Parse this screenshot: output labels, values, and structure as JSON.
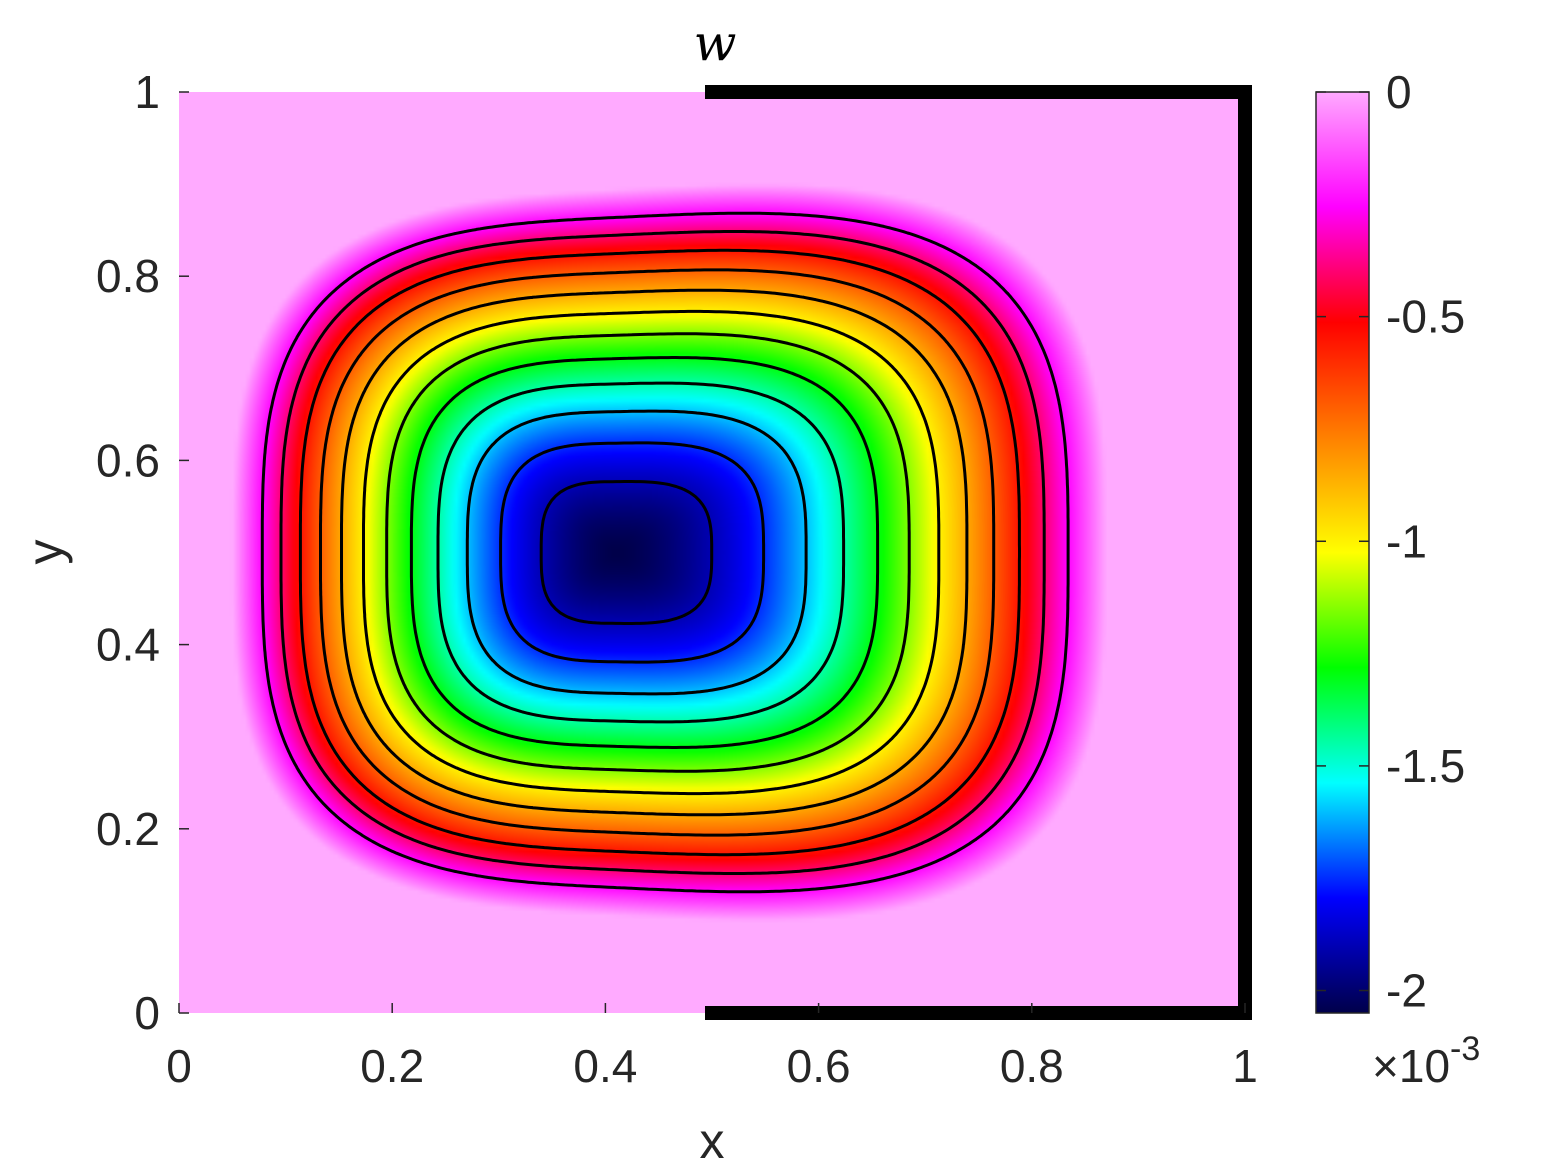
{
  "chart_data": {
    "type": "heatmap",
    "title": "w",
    "xlabel": "x",
    "ylabel": "y",
    "xlim": [
      0,
      1
    ],
    "ylim": [
      0,
      1
    ],
    "x_ticks": [
      "0",
      "0.2",
      "0.4",
      "0.6",
      "0.8",
      "1"
    ],
    "y_ticks": [
      "0",
      "0.2",
      "0.4",
      "0.6",
      "0.8",
      "1"
    ],
    "colorbar": {
      "range": [
        -2.05,
        0
      ],
      "ticks": [
        "0",
        "-0.5",
        "-1",
        "-1.5",
        "-2"
      ],
      "tick_values": [
        0,
        -0.5,
        -1,
        -1.5,
        -2
      ],
      "multiplier_prefix": "×10",
      "multiplier_exponent": "-3",
      "colors": [
        "#00004a",
        "#0000ff",
        "#00ffff",
        "#00ff00",
        "#ffff00",
        "#ff8000",
        "#ff0000",
        "#ff00ff",
        "#ffaaff"
      ]
    },
    "field": {
      "minimum_value": -2.05,
      "minimum_location": [
        0.41,
        0.5
      ]
    },
    "contour_levels": [
      -1.9,
      -1.75,
      -1.6,
      -1.45,
      -1.3,
      -1.15,
      -1.0,
      -0.85,
      -0.7,
      -0.55,
      -0.4,
      -0.25
    ],
    "boundary_segments": [
      {
        "from": [
          0.5,
          1
        ],
        "to": [
          1,
          1
        ]
      },
      {
        "from": [
          1,
          1
        ],
        "to": [
          1,
          0
        ]
      },
      {
        "from": [
          0.5,
          0
        ],
        "to": [
          1,
          0
        ]
      }
    ],
    "grid": false,
    "legend": "none"
  }
}
